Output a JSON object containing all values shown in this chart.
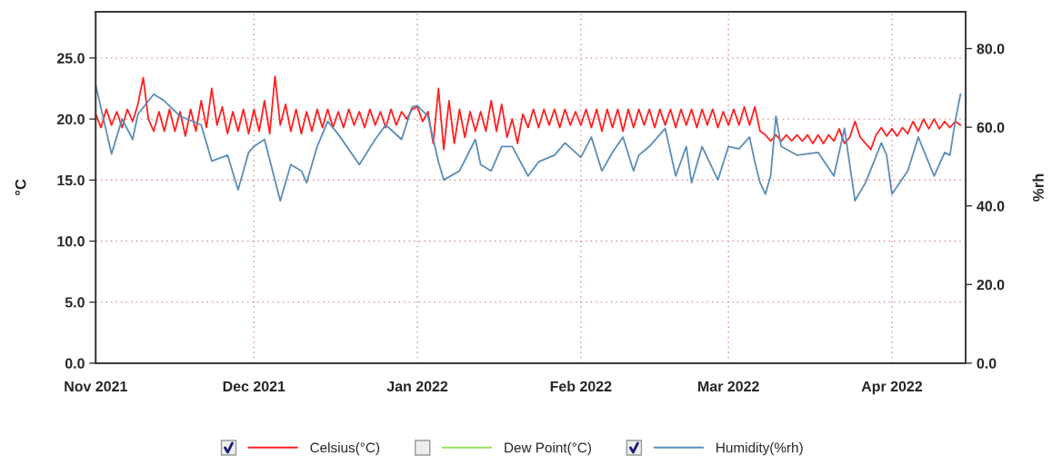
{
  "chart_data": {
    "type": "line",
    "ylabel": "°C",
    "y2label": "%rh",
    "xlim": [
      "2021-11-01",
      "2022-04-15"
    ],
    "xticks": [
      {
        "value": "2021-11-01",
        "label": "Nov 2021"
      },
      {
        "value": "2021-12-01",
        "label": "Dec 2021"
      },
      {
        "value": "2022-01-01",
        "label": "Jan 2022"
      },
      {
        "value": "2022-02-01",
        "label": "Feb 2022"
      },
      {
        "value": "2022-03-01",
        "label": "Mar 2022"
      },
      {
        "value": "2022-04-01",
        "label": "Apr 2022"
      }
    ],
    "ylim": [
      0,
      28.8
    ],
    "yticks": [
      {
        "value": 0,
        "label": "0.0"
      },
      {
        "value": 5,
        "label": "5.0"
      },
      {
        "value": 10,
        "label": "10.0"
      },
      {
        "value": 15,
        "label": "15.0"
      },
      {
        "value": 20,
        "label": "20.0"
      },
      {
        "value": 25,
        "label": "25.0"
      }
    ],
    "y2lim": [
      0,
      89.4
    ],
    "y2ticks": [
      {
        "value": 0,
        "label": "0.0"
      },
      {
        "value": 20,
        "label": "20.0"
      },
      {
        "value": 40,
        "label": "40.0"
      },
      {
        "value": 60,
        "label": "60.0"
      },
      {
        "value": 80,
        "label": "80.0"
      }
    ],
    "grid": true,
    "legend": "bottom",
    "marker": "none",
    "line_style": "solid",
    "series": [
      {
        "name": "Celsius(°C)",
        "color": "#ff2020",
        "x": [
          "2021-11-01",
          "2021-11-02",
          "2021-11-03",
          "2021-11-04",
          "2021-11-05",
          "2021-11-06",
          "2021-11-07",
          "2021-11-08",
          "2021-11-09",
          "2021-11-10",
          "2021-11-11",
          "2021-11-12",
          "2021-11-13",
          "2021-11-14",
          "2021-11-15",
          "2021-11-16",
          "2021-11-17",
          "2021-11-18",
          "2021-11-19",
          "2021-11-20",
          "2021-11-21",
          "2021-11-22",
          "2021-11-23",
          "2021-11-24",
          "2021-11-25",
          "2021-11-26",
          "2021-11-27",
          "2021-11-28",
          "2021-11-29",
          "2021-11-30",
          "2021-12-01",
          "2021-12-02",
          "2021-12-03",
          "2021-12-04",
          "2021-12-05",
          "2021-12-06",
          "2021-12-07",
          "2021-12-08",
          "2021-12-09",
          "2021-12-10",
          "2021-12-11",
          "2021-12-12",
          "2021-12-13",
          "2021-12-14",
          "2021-12-15",
          "2021-12-16",
          "2021-12-17",
          "2021-12-18",
          "2021-12-19",
          "2021-12-20",
          "2021-12-21",
          "2021-12-22",
          "2021-12-23",
          "2021-12-24",
          "2021-12-25",
          "2021-12-26",
          "2021-12-27",
          "2021-12-28",
          "2021-12-29",
          "2021-12-30",
          "2021-12-31",
          "2022-01-01",
          "2022-01-02",
          "2022-01-03",
          "2022-01-04",
          "2022-01-05",
          "2022-01-06",
          "2022-01-07",
          "2022-01-08",
          "2022-01-09",
          "2022-01-10",
          "2022-01-11",
          "2022-01-12",
          "2022-01-13",
          "2022-01-14",
          "2022-01-15",
          "2022-01-16",
          "2022-01-17",
          "2022-01-18",
          "2022-01-19",
          "2022-01-20",
          "2022-01-21",
          "2022-01-22",
          "2022-01-23",
          "2022-01-24",
          "2022-01-25",
          "2022-01-26",
          "2022-01-27",
          "2022-01-28",
          "2022-01-29",
          "2022-01-30",
          "2022-01-31",
          "2022-02-01",
          "2022-02-02",
          "2022-02-03",
          "2022-02-04",
          "2022-02-05",
          "2022-02-06",
          "2022-02-07",
          "2022-02-08",
          "2022-02-09",
          "2022-02-10",
          "2022-02-11",
          "2022-02-12",
          "2022-02-13",
          "2022-02-14",
          "2022-02-15",
          "2022-02-16",
          "2022-02-17",
          "2022-02-18",
          "2022-02-19",
          "2022-02-20",
          "2022-02-21",
          "2022-02-22",
          "2022-02-23",
          "2022-02-24",
          "2022-02-25",
          "2022-02-26",
          "2022-02-27",
          "2022-02-28",
          "2022-03-01",
          "2022-03-02",
          "2022-03-03",
          "2022-03-04",
          "2022-03-05",
          "2022-03-06",
          "2022-03-07",
          "2022-03-08",
          "2022-03-09",
          "2022-03-10",
          "2022-03-11",
          "2022-03-12",
          "2022-03-13",
          "2022-03-14",
          "2022-03-15",
          "2022-03-16",
          "2022-03-17",
          "2022-03-18",
          "2022-03-19",
          "2022-03-20",
          "2022-03-21",
          "2022-03-22",
          "2022-03-23",
          "2022-03-24",
          "2022-03-25",
          "2022-03-26",
          "2022-03-27",
          "2022-03-28",
          "2022-03-29",
          "2022-03-30",
          "2022-03-31",
          "2022-04-01",
          "2022-04-02",
          "2022-04-03",
          "2022-04-04",
          "2022-04-05",
          "2022-04-06",
          "2022-04-07",
          "2022-04-08",
          "2022-04-09",
          "2022-04-10",
          "2022-04-11",
          "2022-04-12",
          "2022-04-13",
          "2022-04-14"
        ],
        "values": [
          20.4,
          19.3,
          20.8,
          19.5,
          20.6,
          19.3,
          20.8,
          19.8,
          21.2,
          23.4,
          20.0,
          19.0,
          20.6,
          19.0,
          20.8,
          19.0,
          20.6,
          18.6,
          20.8,
          19.0,
          21.5,
          19.3,
          22.5,
          19.5,
          21.0,
          18.8,
          20.6,
          19.0,
          20.8,
          18.8,
          20.8,
          19.0,
          21.5,
          18.8,
          23.5,
          19.5,
          21.2,
          19.0,
          20.8,
          18.8,
          20.6,
          19.0,
          20.8,
          19.3,
          20.8,
          19.3,
          20.6,
          19.3,
          20.8,
          19.5,
          20.6,
          19.3,
          20.8,
          19.5,
          20.6,
          19.3,
          20.8,
          19.5,
          20.6,
          20.0,
          20.8,
          21.0,
          19.8,
          20.6,
          18.0,
          22.5,
          17.5,
          21.5,
          18.0,
          20.8,
          18.5,
          20.6,
          19.0,
          20.6,
          19.0,
          21.5,
          19.0,
          21.2,
          18.5,
          20.0,
          18.0,
          20.4,
          19.3,
          20.8,
          19.3,
          20.8,
          19.5,
          20.8,
          19.3,
          20.8,
          19.5,
          20.6,
          19.5,
          20.8,
          19.3,
          20.8,
          19.0,
          20.8,
          19.3,
          20.8,
          19.0,
          20.8,
          19.3,
          20.8,
          19.5,
          20.8,
          19.3,
          20.8,
          19.5,
          20.8,
          19.3,
          20.8,
          19.5,
          20.8,
          19.3,
          20.8,
          19.5,
          20.8,
          19.3,
          20.6,
          19.5,
          20.8,
          19.5,
          21.0,
          19.5,
          21.0,
          19.0,
          18.7,
          18.2,
          18.7,
          18.2,
          18.7,
          18.2,
          18.7,
          18.2,
          18.7,
          18.0,
          18.7,
          18.0,
          18.7,
          18.2,
          19.2,
          18.0,
          18.5,
          19.8,
          18.5,
          18.0,
          17.5,
          18.7,
          19.3,
          18.6,
          19.2,
          18.6,
          19.3,
          18.8,
          19.8,
          19.0,
          20.0,
          19.2,
          20.0,
          19.2,
          19.8,
          19.3,
          19.8,
          19.5
        ]
      },
      {
        "name": "Dew Point(°C)",
        "color": "#99e05a"
      },
      {
        "name": "Humidity(%rh)",
        "color": "#5b8db8",
        "axis": "y2",
        "x": [
          "2021-11-01",
          "2021-11-04",
          "2021-11-06",
          "2021-11-08",
          "2021-11-09",
          "2021-11-12",
          "2021-11-14",
          "2021-11-17",
          "2021-11-21",
          "2021-11-23",
          "2021-11-26",
          "2021-11-28",
          "2021-11-30",
          "2021-12-01",
          "2021-12-03",
          "2021-12-06",
          "2021-12-08",
          "2021-12-10",
          "2021-12-11",
          "2021-12-13",
          "2021-12-15",
          "2021-12-17",
          "2021-12-21",
          "2021-12-24",
          "2021-12-26",
          "2021-12-29",
          "2021-12-31",
          "2022-01-01",
          "2022-01-03",
          "2022-01-05",
          "2022-01-06",
          "2022-01-09",
          "2022-01-12",
          "2022-01-13",
          "2022-01-15",
          "2022-01-17",
          "2022-01-19",
          "2022-01-22",
          "2022-01-24",
          "2022-01-27",
          "2022-01-29",
          "2022-01-31",
          "2022-02-01",
          "2022-02-03",
          "2022-02-05",
          "2022-02-07",
          "2022-02-09",
          "2022-02-11",
          "2022-02-12",
          "2022-02-14",
          "2022-02-17",
          "2022-02-19",
          "2022-02-21",
          "2022-02-22",
          "2022-02-24",
          "2022-02-27",
          "2022-03-01",
          "2022-03-03",
          "2022-03-05",
          "2022-03-06",
          "2022-03-07",
          "2022-03-08",
          "2022-03-09",
          "2022-03-10",
          "2022-03-11",
          "2022-03-14",
          "2022-03-18",
          "2022-03-21",
          "2022-03-23",
          "2022-03-25",
          "2022-03-27",
          "2022-03-30",
          "2022-03-31",
          "2022-04-01",
          "2022-04-04",
          "2022-04-06",
          "2022-04-09",
          "2022-04-11",
          "2022-04-12",
          "2022-04-13",
          "2022-04-14"
        ],
        "values": [
          70.7,
          53.2,
          62.1,
          56.9,
          63.3,
          68.4,
          66.7,
          62.8,
          60.6,
          51.4,
          52.9,
          44.1,
          53.6,
          55.1,
          56.9,
          41.3,
          50.5,
          48.9,
          45.9,
          55.1,
          61.5,
          58.2,
          50.5,
          56.9,
          60.6,
          56.9,
          65.2,
          65.5,
          62.8,
          51.2,
          46.6,
          48.9,
          56.9,
          50.5,
          48.9,
          55.1,
          55.1,
          47.6,
          51.2,
          52.9,
          56.0,
          53.6,
          52.3,
          57.5,
          48.9,
          53.6,
          57.5,
          48.9,
          52.9,
          55.1,
          59.7,
          47.6,
          55.1,
          45.9,
          55.1,
          46.6,
          55.1,
          54.5,
          57.5,
          51.2,
          45.9,
          43.0,
          47.6,
          62.8,
          55.1,
          52.9,
          53.6,
          47.6,
          59.7,
          41.3,
          45.9,
          56.0,
          52.9,
          43.0,
          48.9,
          57.5,
          47.6,
          53.6,
          52.9,
          61.5,
          68.4
        ]
      }
    ]
  }
}
